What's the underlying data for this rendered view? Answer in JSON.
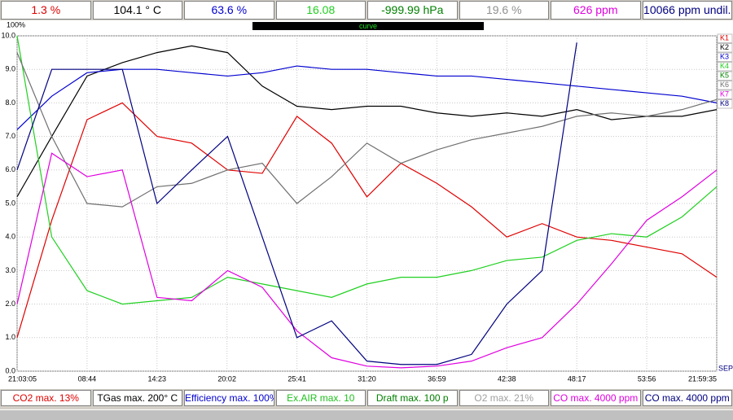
{
  "readings": [
    {
      "text": "1.3 %",
      "color": "#e00000"
    },
    {
      "text": "104.1 ° C",
      "color": "#000000"
    },
    {
      "text": "63.6 %",
      "color": "#0000d0"
    },
    {
      "text": "16.08",
      "color": "#20d020"
    },
    {
      "text": "-999.99 hPa",
      "color": "#008000"
    },
    {
      "text": "19.6 %",
      "color": "#909090"
    },
    {
      "text": "626 ppm",
      "color": "#e000e0"
    },
    {
      "text": "10066 ppm undil.",
      "color": "#000080"
    }
  ],
  "curve_label": "curve",
  "footer": [
    {
      "text": "CO2 max. 13%",
      "color": "#e00000"
    },
    {
      "text": "TGas max. 200° C",
      "color": "#000000"
    },
    {
      "text": "Efficiency max. 100%",
      "color": "#0000d0"
    },
    {
      "text": "Ex.AIR max. 10",
      "color": "#20c020"
    },
    {
      "text": "Draft max. 100 p",
      "color": "#008000"
    },
    {
      "text": "O2 max. 21%",
      "color": "#a0a0a0"
    },
    {
      "text": "CO max. 4000 ppm",
      "color": "#e000e0"
    },
    {
      "text": "CO max. 4000 ppm",
      "color": "#000080"
    }
  ],
  "chart_data": {
    "type": "line",
    "top_label": "100%",
    "end_label": "SEP",
    "x": [
      0,
      2.8,
      5.65,
      8.5,
      11.3,
      14.1,
      17,
      19.8,
      22.6,
      25.4,
      28.25,
      31,
      33.9,
      36.7,
      39.55,
      42.4,
      45.2,
      48,
      50.85,
      53.7,
      56.5
    ],
    "xlim": [
      0,
      56.5
    ],
    "xticks": [
      {
        "value": 0,
        "label": "21:03:05"
      },
      {
        "value": 5.65,
        "label": "08:44"
      },
      {
        "value": 11.3,
        "label": "14:23"
      },
      {
        "value": 16.95,
        "label": "20:02"
      },
      {
        "value": 22.6,
        "label": "25:41"
      },
      {
        "value": 28.25,
        "label": "31:20"
      },
      {
        "value": 33.9,
        "label": "36:59"
      },
      {
        "value": 39.55,
        "label": "42:38"
      },
      {
        "value": 45.2,
        "label": "48:17"
      },
      {
        "value": 50.85,
        "label": "53:56"
      },
      {
        "value": 56.5,
        "label": "21:59:35"
      }
    ],
    "ylim": [
      0,
      10
    ],
    "yticks": [
      {
        "value": 0,
        "label": "0.0"
      },
      {
        "value": 1,
        "label": "1.0"
      },
      {
        "value": 2,
        "label": "2.0"
      },
      {
        "value": 3,
        "label": "3.0"
      },
      {
        "value": 4,
        "label": "4.0"
      },
      {
        "value": 5,
        "label": "5.0"
      },
      {
        "value": 6,
        "label": "6.0"
      },
      {
        "value": 7,
        "label": "7.0"
      },
      {
        "value": 8,
        "label": "8.0"
      },
      {
        "value": 9,
        "label": "9.0"
      },
      {
        "value": 10,
        "label": "10.0"
      }
    ],
    "grid": true,
    "series": [
      {
        "name": "K1",
        "color": "#e00000",
        "values": [
          1.0,
          4.5,
          7.5,
          8.0,
          7.0,
          6.8,
          6.0,
          5.9,
          7.6,
          6.8,
          5.2,
          6.2,
          5.6,
          4.9,
          4.0,
          4.4,
          4.0,
          3.9,
          3.7,
          3.5,
          2.8
        ]
      },
      {
        "name": "K2",
        "color": "#000000",
        "values": [
          5.2,
          7.0,
          8.8,
          9.2,
          9.5,
          9.7,
          9.5,
          8.5,
          7.9,
          7.8,
          7.9,
          7.9,
          7.7,
          7.6,
          7.7,
          7.6,
          7.8,
          7.5,
          7.6,
          7.6,
          7.8
        ]
      },
      {
        "name": "K3",
        "color": "#0000d0",
        "values": [
          7.2,
          8.2,
          8.9,
          9.0,
          9.0,
          8.9,
          8.8,
          8.9,
          9.1,
          9.0,
          9.0,
          8.9,
          8.8,
          8.8,
          8.7,
          8.6,
          8.5,
          8.4,
          8.3,
          8.2,
          8.0
        ]
      },
      {
        "name": "K4",
        "color": "#20d020",
        "values": [
          10.0,
          4.0,
          2.4,
          2.0,
          2.1,
          2.2,
          2.8,
          2.6,
          2.4,
          2.2,
          2.6,
          2.8,
          2.8,
          3.0,
          3.3,
          3.4,
          3.9,
          4.1,
          4.0,
          4.6,
          5.5
        ]
      },
      {
        "name": "K5",
        "color": "#008000",
        "values": [
          null,
          null,
          null,
          null,
          null,
          null,
          null,
          null,
          null,
          null,
          null,
          null,
          null,
          null,
          null,
          null,
          null,
          null,
          null,
          null,
          null
        ]
      },
      {
        "name": "K6",
        "color": "#707070",
        "values": [
          9.5,
          7.0,
          5.0,
          4.9,
          5.5,
          5.6,
          6.0,
          6.2,
          5.0,
          5.8,
          6.8,
          6.2,
          6.6,
          6.9,
          7.1,
          7.3,
          7.6,
          7.7,
          7.6,
          7.8,
          8.1
        ]
      },
      {
        "name": "K7",
        "color": "#e000e0",
        "values": [
          2.0,
          6.5,
          5.8,
          6.0,
          2.2,
          2.1,
          3.0,
          2.5,
          1.2,
          0.4,
          0.15,
          0.1,
          0.15,
          0.3,
          0.7,
          1.0,
          2.0,
          3.2,
          4.5,
          5.2,
          6.0
        ]
      },
      {
        "name": "K8",
        "color": "#000080",
        "values": [
          6.0,
          9.0,
          9.0,
          9.0,
          5.0,
          6.0,
          7.0,
          4.0,
          1.0,
          1.5,
          0.3,
          0.2,
          0.2,
          0.5,
          2.0,
          3.0,
          9.8,
          null,
          null,
          null,
          null
        ]
      }
    ]
  }
}
